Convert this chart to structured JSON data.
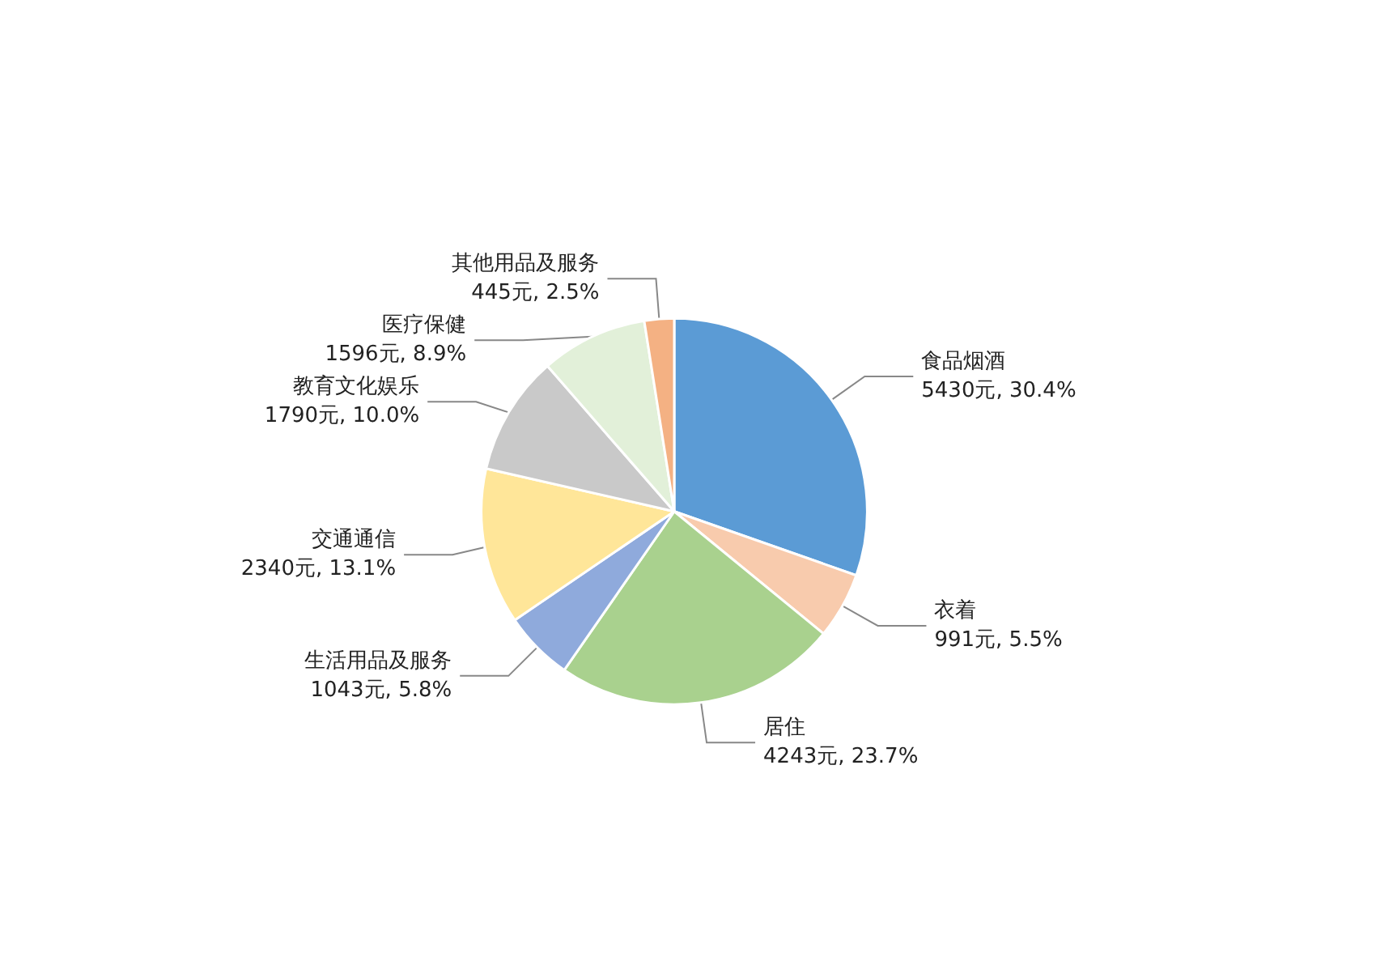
{
  "chart_data": {
    "type": "pie",
    "categories": [
      "食品烟酒",
      "衣着",
      "居住",
      "生活用品及服务",
      "交通通信",
      "教育文化娱乐",
      "医疗保健",
      "其他用品及服务"
    ],
    "values": [
      5430,
      991,
      4243,
      1043,
      2340,
      1790,
      1596,
      445
    ],
    "colors": [
      "#5b9bd5",
      "#f8cbad",
      "#a9d18e",
      "#8faadc",
      "#ffe699",
      "#c9c9c9",
      "#e2f0d9",
      "#f4b183"
    ],
    "value_labels": [
      "5430元, 30.4%",
      "991元, 5.5%",
      "4243元, 23.7%",
      "1043元, 5.8%",
      "2340元, 13.1%",
      "1790元, 10.0%",
      "1596元, 8.9%",
      "445元, 2.5%"
    ]
  }
}
